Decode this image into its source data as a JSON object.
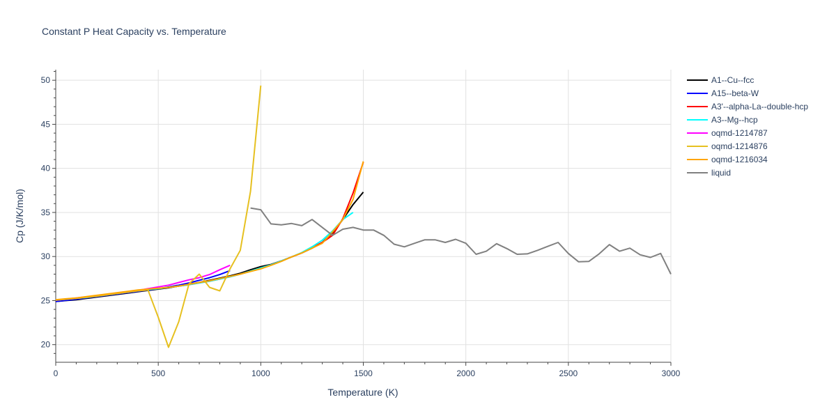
{
  "chart_data": {
    "type": "line",
    "title": "Constant P Heat Capacity vs. Temperature",
    "xlabel": "Temperature (K)",
    "ylabel": "Cp (J/K/mol)",
    "xlim": [
      0,
      3000
    ],
    "ylim": [
      18,
      51.2
    ],
    "xticks": [
      0,
      500,
      1000,
      1500,
      2000,
      2500,
      3000
    ],
    "xtick_labels": [
      "0",
      "500",
      "1000",
      "1500",
      "2000",
      "2500",
      "3000"
    ],
    "yticks": [
      20,
      25,
      30,
      35,
      40,
      45,
      50
    ],
    "ytick_labels": [
      "20",
      "25",
      "30",
      "35",
      "40",
      "45",
      "50"
    ],
    "grid": true,
    "legend_position": "top-right",
    "series": [
      {
        "name": "A1--Cu--fcc",
        "color": "#000000",
        "x": [
          0,
          50,
          100,
          150,
          200,
          250,
          300,
          350,
          400,
          450,
          500,
          550,
          600,
          650,
          700,
          750,
          800,
          850,
          900,
          950,
          1000,
          1050,
          1100,
          1150,
          1200,
          1250,
          1300,
          1350,
          1400,
          1450,
          1500
        ],
        "y": [
          24.9,
          25.0,
          25.1,
          25.25,
          25.4,
          25.55,
          25.7,
          25.85,
          26.0,
          26.15,
          26.3,
          26.45,
          26.65,
          26.85,
          27.05,
          27.3,
          27.55,
          27.8,
          28.1,
          28.5,
          28.85,
          29.1,
          29.5,
          29.95,
          30.4,
          30.95,
          31.6,
          32.7,
          34.2,
          35.9,
          37.3
        ]
      },
      {
        "name": "A15--beta-W",
        "color": "#0000ff",
        "x": [
          0,
          100,
          200,
          300,
          400,
          500,
          550,
          600,
          650,
          700,
          750,
          800,
          850
        ],
        "y": [
          24.9,
          25.15,
          25.45,
          25.75,
          26.05,
          26.35,
          26.55,
          26.75,
          27.0,
          27.3,
          27.6,
          27.95,
          28.4
        ]
      },
      {
        "name": "A3'--alpha-La--double-hcp",
        "color": "#ff0000",
        "x": [
          0,
          50,
          100,
          150,
          200,
          250,
          300,
          350,
          400,
          450,
          500,
          550,
          600,
          650,
          700,
          750,
          800,
          850,
          900,
          950,
          1000,
          1050,
          1100,
          1150,
          1200,
          1250,
          1300,
          1350,
          1400,
          1450,
          1500
        ],
        "y": [
          25.05,
          25.15,
          25.25,
          25.35,
          25.5,
          25.65,
          25.8,
          25.95,
          26.1,
          26.25,
          26.35,
          26.5,
          26.65,
          26.8,
          27.0,
          27.2,
          27.45,
          27.7,
          28.0,
          28.35,
          28.7,
          29.05,
          29.5,
          29.95,
          30.4,
          31.0,
          31.6,
          32.4,
          34.3,
          37.2,
          40.7
        ]
      },
      {
        "name": "A3--Mg--hcp",
        "color": "#00ffff",
        "x": [
          0,
          50,
          100,
          150,
          200,
          250,
          300,
          350,
          400,
          450,
          500,
          550,
          600,
          650,
          700,
          750,
          800,
          850,
          900,
          950,
          1000,
          1050,
          1100,
          1150,
          1200,
          1250,
          1300,
          1350,
          1400,
          1450
        ],
        "y": [
          25.05,
          25.15,
          25.25,
          25.35,
          25.5,
          25.65,
          25.8,
          25.95,
          26.1,
          26.25,
          26.35,
          26.5,
          26.65,
          26.8,
          27.0,
          27.2,
          27.45,
          27.7,
          28.0,
          28.35,
          28.7,
          29.05,
          29.5,
          29.95,
          30.45,
          31.1,
          31.85,
          32.9,
          34.2,
          35.0
        ]
      },
      {
        "name": "oqmd-1214787",
        "color": "#ff00ff",
        "x": [
          0,
          100,
          200,
          300,
          400,
          450,
          500,
          550,
          600,
          650,
          700,
          750,
          800,
          850
        ],
        "y": [
          25.05,
          25.3,
          25.55,
          25.85,
          26.15,
          26.35,
          26.55,
          26.75,
          27.05,
          27.35,
          27.6,
          27.95,
          28.5,
          29.0
        ]
      },
      {
        "name": "oqmd-1214876",
        "color": "#e6c020",
        "x": [
          0,
          100,
          200,
          300,
          400,
          450,
          500,
          550,
          600,
          650,
          700,
          750,
          800,
          850,
          900,
          950,
          1000
        ],
        "y": [
          25.05,
          25.25,
          25.5,
          25.8,
          26.1,
          26.2,
          23.1,
          19.7,
          22.6,
          26.9,
          28.0,
          26.5,
          26.1,
          28.6,
          30.7,
          37.4,
          49.4
        ]
      },
      {
        "name": "oqmd-1216034",
        "color": "#ffa500",
        "x": [
          0,
          50,
          100,
          150,
          200,
          250,
          300,
          350,
          400,
          450,
          500,
          550,
          600,
          650,
          700,
          750,
          800,
          850,
          900,
          950,
          1000,
          1050,
          1100,
          1150,
          1200,
          1250,
          1300,
          1350,
          1400,
          1450,
          1500
        ],
        "y": [
          25.1,
          25.2,
          25.3,
          25.45,
          25.6,
          25.75,
          25.9,
          26.05,
          26.2,
          26.3,
          26.4,
          26.5,
          26.65,
          26.85,
          27.05,
          27.25,
          27.5,
          27.75,
          28.0,
          28.3,
          28.6,
          29.0,
          29.45,
          29.95,
          30.4,
          30.95,
          31.5,
          32.8,
          34.2,
          36.5,
          40.8
        ]
      },
      {
        "name": "liquid",
        "color": "#808080",
        "x": [
          950,
          1000,
          1050,
          1100,
          1150,
          1200,
          1250,
          1300,
          1350,
          1400,
          1450,
          1500,
          1550,
          1600,
          1650,
          1700,
          1750,
          1800,
          1850,
          1900,
          1950,
          2000,
          2050,
          2100,
          2150,
          2200,
          2250,
          2300,
          2350,
          2400,
          2450,
          2500,
          2550,
          2600,
          2650,
          2700,
          2750,
          2800,
          2850,
          2900,
          2950,
          3000
        ],
        "y": [
          35.5,
          35.3,
          33.7,
          33.6,
          33.75,
          33.5,
          34.2,
          33.3,
          32.4,
          33.1,
          33.3,
          33.0,
          33.0,
          32.4,
          31.4,
          31.1,
          31.5,
          31.9,
          31.9,
          31.6,
          31.95,
          31.5,
          30.25,
          30.6,
          31.45,
          30.9,
          30.25,
          30.3,
          30.7,
          31.15,
          31.6,
          30.35,
          29.4,
          29.45,
          30.3,
          31.35,
          30.6,
          30.95,
          30.2,
          29.9,
          30.35,
          28.0
        ]
      }
    ]
  }
}
